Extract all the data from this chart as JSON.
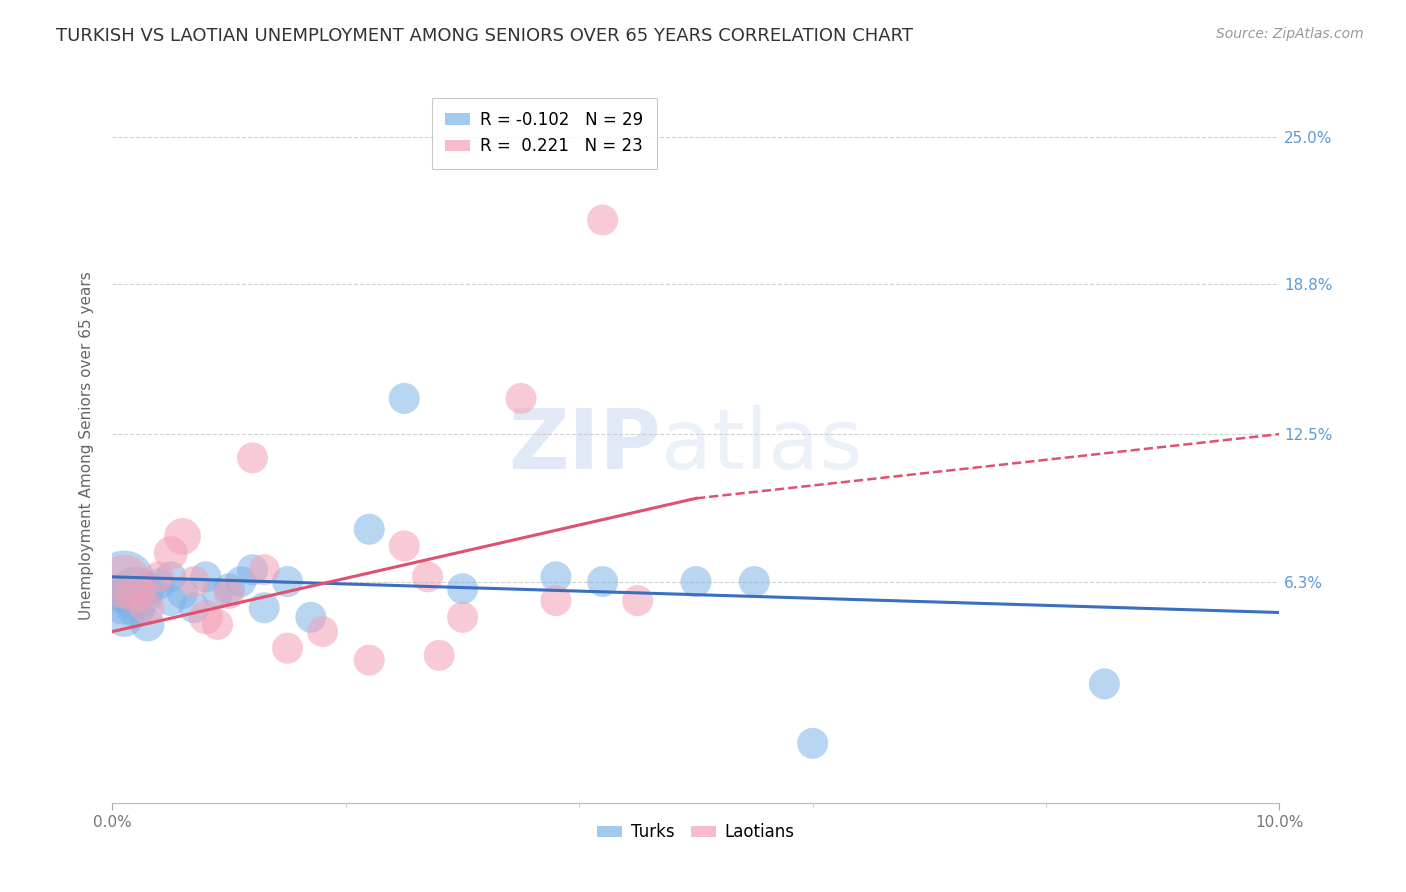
{
  "title": "TURKISH VS LAOTIAN UNEMPLOYMENT AMONG SENIORS OVER 65 YEARS CORRELATION CHART",
  "source": "Source: ZipAtlas.com",
  "ylabel": "Unemployment Among Seniors over 65 years",
  "xlim": [
    0.0,
    0.1
  ],
  "ylim": [
    -0.03,
    0.27
  ],
  "right_yticks": [
    0.063,
    0.125,
    0.188,
    0.25
  ],
  "right_yticklabels": [
    "6.3%",
    "12.5%",
    "18.8%",
    "25.0%"
  ],
  "turks_color": "#7EB3E8",
  "laotians_color": "#F4A0B5",
  "turks_line_color": "#3A6EBF",
  "laotians_line_color": "#E05070",
  "legend_turks_R": "-0.102",
  "legend_turks_N": "29",
  "legend_laotians_R": "0.221",
  "legend_laotians_N": "23",
  "turks_x": [
    0.001,
    0.001,
    0.001,
    0.002,
    0.002,
    0.003,
    0.003,
    0.004,
    0.005,
    0.005,
    0.006,
    0.007,
    0.008,
    0.009,
    0.01,
    0.011,
    0.012,
    0.013,
    0.015,
    0.017,
    0.022,
    0.025,
    0.03,
    0.038,
    0.042,
    0.05,
    0.055,
    0.06,
    0.085
  ],
  "turks_y": [
    0.063,
    0.055,
    0.048,
    0.058,
    0.052,
    0.06,
    0.045,
    0.062,
    0.065,
    0.055,
    0.058,
    0.052,
    0.065,
    0.058,
    0.06,
    0.063,
    0.068,
    0.052,
    0.063,
    0.048,
    0.085,
    0.14,
    0.06,
    0.065,
    0.063,
    0.063,
    0.063,
    -0.005,
    0.02
  ],
  "turks_sizes": [
    2000,
    1200,
    800,
    1500,
    800,
    600,
    600,
    500,
    500,
    500,
    500,
    500,
    500,
    500,
    500,
    500,
    500,
    500,
    500,
    500,
    500,
    500,
    500,
    500,
    500,
    500,
    500,
    500,
    500
  ],
  "laotians_x": [
    0.001,
    0.002,
    0.003,
    0.004,
    0.005,
    0.006,
    0.007,
    0.008,
    0.009,
    0.01,
    0.012,
    0.013,
    0.015,
    0.018,
    0.022,
    0.025,
    0.027,
    0.028,
    0.03,
    0.035,
    0.038,
    0.042,
    0.045
  ],
  "laotians_y": [
    0.063,
    0.058,
    0.052,
    0.065,
    0.075,
    0.082,
    0.063,
    0.048,
    0.045,
    0.058,
    0.115,
    0.068,
    0.035,
    0.042,
    0.03,
    0.078,
    0.065,
    0.032,
    0.048,
    0.14,
    0.055,
    0.215,
    0.055
  ],
  "laotians_sizes": [
    1500,
    800,
    600,
    500,
    600,
    700,
    500,
    600,
    500,
    500,
    500,
    500,
    500,
    500,
    500,
    500,
    500,
    500,
    500,
    500,
    500,
    500,
    500
  ],
  "turks_line_x0": 0.0,
  "turks_line_x1": 0.1,
  "turks_line_y0": 0.065,
  "turks_line_y1": 0.05,
  "laotians_line_x0": 0.0,
  "laotians_line_solid_x1": 0.05,
  "laotians_line_x1": 0.1,
  "laotians_line_y0": 0.042,
  "laotians_line_solid_y1": 0.098,
  "laotians_line_y1": 0.125,
  "grid_color": "#CCCCCC",
  "background_color": "#FFFFFF",
  "title_fontsize": 13,
  "axis_label_fontsize": 11,
  "tick_fontsize": 11,
  "right_tick_color": "#5B9BD5",
  "source_fontsize": 10
}
